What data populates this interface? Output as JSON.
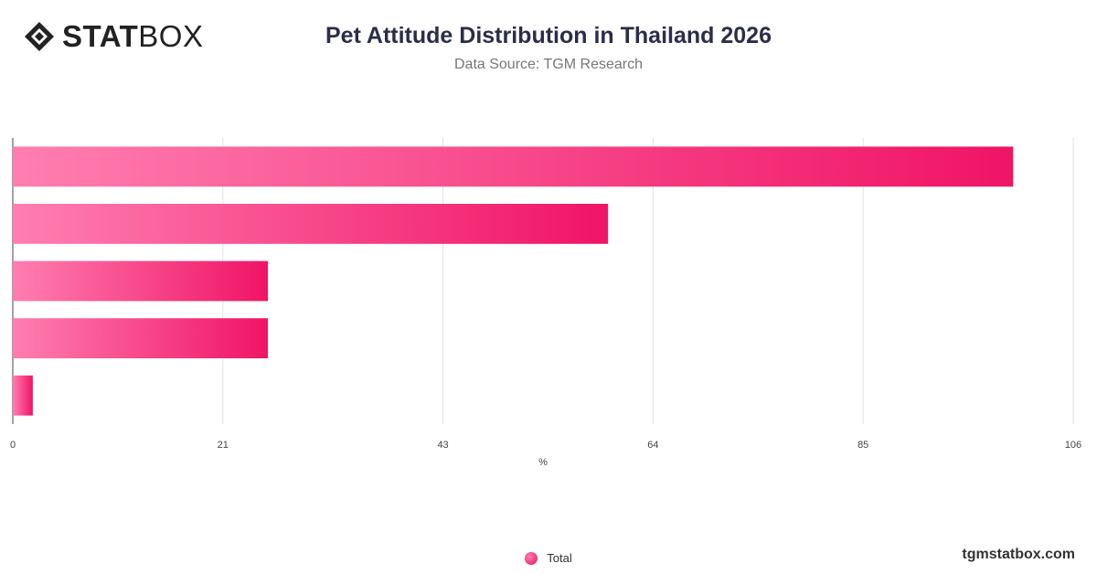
{
  "header": {
    "logo_bold": "STAT",
    "logo_light": "BOX",
    "title": "Pet Attitude Distribution in Thailand 2026",
    "subtitle": "Data Source: TGM Research"
  },
  "chart_data": {
    "type": "bar",
    "orientation": "horizontal",
    "title": "Pet Attitude Distribution in Thailand 2026",
    "subtitle": "Data Source: TGM Research",
    "xlabel": "%",
    "ylabel": "",
    "xlim": [
      0,
      106
    ],
    "xticks": [
      "0",
      "21",
      "43",
      "64",
      "85",
      "106"
    ],
    "categories": [
      "",
      "",
      "",
      "",
      ""
    ],
    "series": [
      {
        "name": "Total",
        "values": [
          100,
          59.5,
          25.5,
          25.5,
          2
        ]
      }
    ],
    "grid": true,
    "legend": "bottom-center",
    "colors": {
      "bar_start": "#ff7eb0",
      "bar_end": "#f01465"
    }
  },
  "legend": {
    "label": "Total"
  },
  "footer": {
    "watermark": "tgmstatbox.com"
  }
}
